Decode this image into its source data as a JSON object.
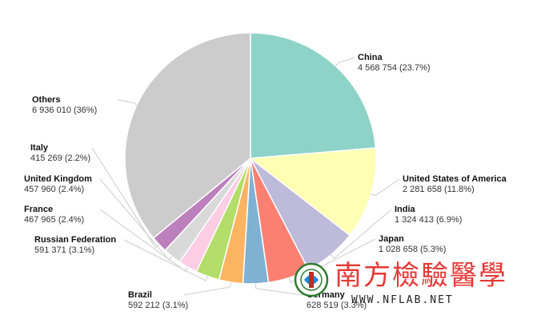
{
  "chart_data": {
    "type": "pie",
    "unit": "",
    "slices": [
      {
        "name": "China",
        "value": 4568754,
        "value_label": "4 568 754 (23.7%)",
        "percent": 23.7,
        "color": "#8dd3c7"
      },
      {
        "name": "United States of America",
        "value": 2281658,
        "value_label": "2 281 658 (11.8%)",
        "percent": 11.8,
        "color": "#ffffb3"
      },
      {
        "name": "India",
        "value": 1324413,
        "value_label": "1 324 413 (6.9%)",
        "percent": 6.9,
        "color": "#bebada"
      },
      {
        "name": "Japan",
        "value": 1028658,
        "value_label": "1 028 658 (5.3%)",
        "percent": 5.3,
        "color": "#fb8072"
      },
      {
        "name": "Germany",
        "value": 628519,
        "value_label": "628 519 (3.3%)",
        "percent": 3.3,
        "color": "#80b1d3"
      },
      {
        "name": "Brazil",
        "value": 592212,
        "value_label": "592 212 (3.1%)",
        "percent": 3.1,
        "color": "#fdb462"
      },
      {
        "name": "Russian Federation",
        "value": 591371,
        "value_label": "591 371 (3.1%)",
        "percent": 3.1,
        "color": "#b3de69"
      },
      {
        "name": "France",
        "value": 467965,
        "value_label": "467 965 (2.4%)",
        "percent": 2.4,
        "color": "#fccde5"
      },
      {
        "name": "United Kingdom",
        "value": 457960,
        "value_label": "457 960 (2.4%)",
        "percent": 2.4,
        "color": "#d9d9d9"
      },
      {
        "name": "Italy",
        "value": 415269,
        "value_label": "415 269 (2.2%)",
        "percent": 2.2,
        "color": "#bc80bd"
      },
      {
        "name": "Others",
        "value": 6936010,
        "value_label": "6 936 010 (36%)",
        "percent": 36,
        "color": "#cccccc"
      }
    ]
  },
  "watermark": {
    "text_cn": "南方檢驗醫學",
    "url": "WWW.NFLAB.NET",
    "logo_color": "#2e7d32"
  }
}
